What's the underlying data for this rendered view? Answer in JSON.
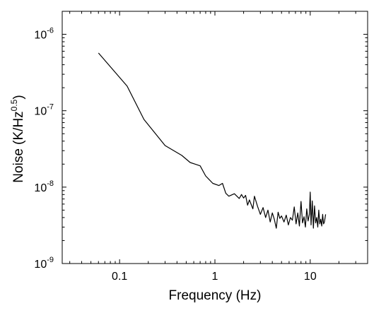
{
  "chart_data": {
    "type": "line",
    "xscale": "log",
    "yscale": "log",
    "xlim": [
      0.025,
      40
    ],
    "ylim": [
      1e-09,
      2e-06
    ],
    "xlabel": "Frequency (Hz)",
    "ylabel": {
      "prefix": "Noise (K/Hz",
      "exponent": "0.5",
      "suffix": ")"
    },
    "x_ticks": [
      {
        "value": 0.1,
        "label": "0.1"
      },
      {
        "value": 1,
        "label": "1"
      },
      {
        "value": 10,
        "label": "10"
      }
    ],
    "y_ticks": [
      {
        "value": 1e-09,
        "base": "10",
        "exp": "-9"
      },
      {
        "value": 1e-08,
        "base": "10",
        "exp": "-8"
      },
      {
        "value": 1e-07,
        "base": "10",
        "exp": "-7"
      },
      {
        "value": 1e-06,
        "base": "10",
        "exp": "-6"
      }
    ],
    "grid": false,
    "line_color": "#000000",
    "series": [
      {
        "x": [
          0.06,
          0.12,
          0.18,
          0.3,
          0.45,
          0.55,
          0.62,
          0.7,
          0.8,
          0.95,
          1.1,
          1.2,
          1.3,
          1.4,
          1.6,
          1.8,
          1.9,
          2.0,
          2.1,
          2.2,
          2.3,
          2.5,
          2.6,
          2.8,
          3.0,
          3.2,
          3.4,
          3.6,
          3.8,
          4.0,
          4.2,
          4.4,
          4.6,
          4.8,
          5.0,
          5.3,
          5.6,
          5.9,
          6.2,
          6.5,
          6.8,
          7.1,
          7.4,
          7.7,
          8.0,
          8.3,
          8.6,
          8.9,
          9.2,
          9.5,
          9.8,
          10.0,
          10.2,
          10.5,
          10.8,
          11.1,
          11.4,
          11.7,
          12.0,
          12.3,
          12.6,
          12.9,
          13.2,
          13.5,
          13.8,
          14.1,
          14.5
        ],
        "y": [
          5.7e-07,
          2.1e-07,
          7.7e-08,
          3.5e-08,
          2.6e-08,
          2.1e-08,
          2e-08,
          1.9e-08,
          1.4e-08,
          1.12e-08,
          1.05e-08,
          1.12e-08,
          8.3e-09,
          7.6e-09,
          8.2e-09,
          7.1e-09,
          8e-09,
          7.2e-09,
          7.8e-09,
          5.8e-09,
          6.8e-09,
          5.2e-09,
          7.6e-09,
          5.6e-09,
          4.4e-09,
          5.4e-09,
          4e-09,
          5e-09,
          3.5e-09,
          4.6e-09,
          3.8e-09,
          2.9e-09,
          4.7e-09,
          3.9e-09,
          4.2e-09,
          3.5e-09,
          4.3e-09,
          3.2e-09,
          4e-09,
          3.7e-09,
          5.5e-09,
          3.3e-09,
          4.6e-09,
          3.1e-09,
          6.5e-09,
          3.4e-09,
          4.1e-09,
          3e-09,
          5.2e-09,
          3.6e-09,
          4.4e-09,
          8.6e-09,
          3.2e-09,
          6.6e-09,
          2.9e-09,
          5.7e-09,
          3.4e-09,
          4e-09,
          3e-09,
          5e-09,
          3.3e-09,
          3.8e-09,
          3.1e-09,
          4.4e-09,
          3.3e-09,
          3.5e-09,
          4.4e-09
        ]
      }
    ]
  }
}
